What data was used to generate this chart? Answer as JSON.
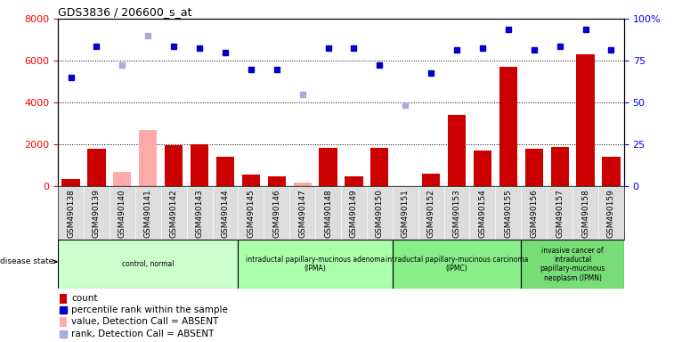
{
  "title": "GDS3836 / 206600_s_at",
  "samples": [
    "GSM490138",
    "GSM490139",
    "GSM490140",
    "GSM490141",
    "GSM490142",
    "GSM490143",
    "GSM490144",
    "GSM490145",
    "GSM490146",
    "GSM490147",
    "GSM490148",
    "GSM490149",
    "GSM490150",
    "GSM490151",
    "GSM490152",
    "GSM490153",
    "GSM490154",
    "GSM490155",
    "GSM490156",
    "GSM490157",
    "GSM490158",
    "GSM490159"
  ],
  "count_values": [
    350,
    1800,
    0,
    0,
    1950,
    2000,
    1400,
    550,
    500,
    150,
    1850,
    500,
    1850,
    0,
    600,
    3400,
    1700,
    5700,
    1800,
    1900,
    6300,
    1400
  ],
  "absent_value": [
    0,
    0,
    700,
    2700,
    0,
    0,
    0,
    0,
    0,
    200,
    0,
    0,
    0,
    0,
    0,
    0,
    0,
    0,
    0,
    0,
    0,
    0
  ],
  "percentile_values": [
    5200,
    6700,
    0,
    0,
    6700,
    6600,
    6400,
    5600,
    5600,
    0,
    6600,
    6600,
    5800,
    0,
    5400,
    6500,
    6600,
    7500,
    6500,
    6700,
    7500,
    6500
  ],
  "absent_rank": [
    0,
    0,
    5800,
    7200,
    0,
    0,
    0,
    0,
    0,
    4400,
    0,
    0,
    0,
    3900,
    0,
    0,
    0,
    0,
    0,
    0,
    0,
    0
  ],
  "is_absent": [
    false,
    false,
    true,
    true,
    false,
    false,
    false,
    false,
    false,
    true,
    false,
    false,
    false,
    true,
    false,
    false,
    false,
    false,
    false,
    false,
    false,
    false
  ],
  "groups": [
    {
      "label": "control, normal",
      "start": 0,
      "end": 7,
      "color": "#ccffcc"
    },
    {
      "label": "intraductal papillary-mucinous adenoma\n(IPMA)",
      "start": 7,
      "end": 13,
      "color": "#aaffaa"
    },
    {
      "label": "intraductal papillary-mucinous carcinoma\n(IPMC)",
      "start": 13,
      "end": 18,
      "color": "#88ee88"
    },
    {
      "label": "invasive cancer of\nintraductal\npapillary-mucinous\nneoplasm (IPMN)",
      "start": 18,
      "end": 22,
      "color": "#77dd77"
    }
  ],
  "ylim_left": [
    0,
    8000
  ],
  "ylim_right": [
    0,
    100
  ],
  "yticks_left": [
    0,
    2000,
    4000,
    6000,
    8000
  ],
  "yticks_right": [
    0,
    25,
    50,
    75,
    100
  ],
  "bar_color": "#cc0000",
  "absent_bar_color": "#ffaaaa",
  "dot_color": "#0000cc",
  "absent_dot_color": "#aaaadd",
  "bg_color": "#dddddd",
  "plot_bg": "#ffffff"
}
